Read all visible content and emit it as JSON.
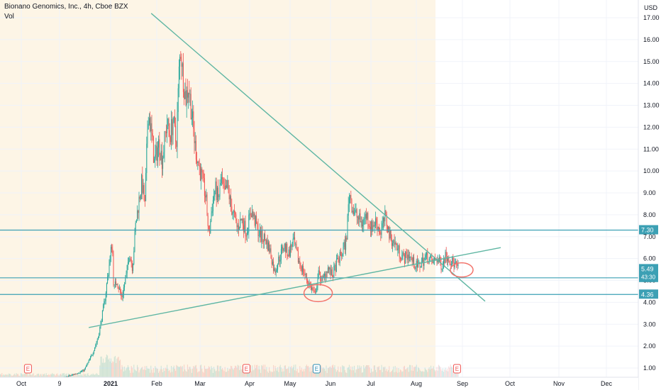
{
  "header": {
    "title": "Bionano Genomics, Inc., 4h, Cboe BZX",
    "volume_label": "Vol"
  },
  "currency_label": "USD",
  "chart_data": {
    "type": "candlestick",
    "symbol": "Bionano Genomics, Inc.",
    "interval": "4h",
    "exchange": "Cboe BZX",
    "x_axis_labels": [
      "Oct",
      "9",
      "2021",
      "Feb",
      "Mar",
      "Apr",
      "May",
      "Jun",
      "Jul",
      "Aug",
      "Sep",
      "Oct",
      "Nov",
      "Dec"
    ],
    "y_axis_ticks": [
      "17.00",
      "16.00",
      "15.00",
      "14.00",
      "13.00",
      "12.00",
      "11.00",
      "10.00",
      "9.00",
      "8.00",
      "7.00",
      "6.00",
      "5.00",
      "4.00",
      "3.00",
      "2.00",
      "1.00"
    ],
    "ylim": [
      0.75,
      17.45
    ],
    "price_path": [
      [
        "2020-10-01",
        0.42
      ],
      [
        "2020-11-01",
        0.45
      ],
      [
        "2020-12-01",
        0.5
      ],
      [
        "2020-12-15",
        0.9
      ],
      [
        "2020-12-20",
        1.6
      ],
      [
        "2020-12-24",
        2.4
      ],
      [
        "2020-12-28",
        4.0
      ],
      [
        "2021-01-02",
        6.8
      ],
      [
        "2021-01-03",
        4.6
      ],
      [
        "2021-01-05",
        5.0
      ],
      [
        "2021-01-08",
        4.2
      ],
      [
        "2021-01-11",
        5.2
      ],
      [
        "2021-01-13",
        6.3
      ],
      [
        "2021-01-15",
        5.6
      ],
      [
        "2021-01-17",
        7.5
      ],
      [
        "2021-01-19",
        8.6
      ],
      [
        "2021-01-21",
        9.5
      ],
      [
        "2021-01-23",
        8.4
      ],
      [
        "2021-01-25",
        12.8
      ],
      [
        "2021-01-27",
        11.8
      ],
      [
        "2021-01-29",
        10.4
      ],
      [
        "2021-02-01",
        11.3
      ],
      [
        "2021-02-03",
        10.5
      ],
      [
        "2021-02-06",
        12.2
      ],
      [
        "2021-02-08",
        11.6
      ],
      [
        "2021-02-10",
        12.3
      ],
      [
        "2021-02-12",
        11.2
      ],
      [
        "2021-02-14",
        14.8
      ],
      [
        "2021-02-15",
        15.6
      ],
      [
        "2021-02-16",
        14.6
      ],
      [
        "2021-02-18",
        13.3
      ],
      [
        "2021-02-20",
        13.9
      ],
      [
        "2021-02-22",
        12.6
      ],
      [
        "2021-02-24",
        11.2
      ],
      [
        "2021-02-26",
        10.4
      ],
      [
        "2021-03-01",
        9.5
      ],
      [
        "2021-03-03",
        8.8
      ],
      [
        "2021-03-05",
        7.0
      ],
      [
        "2021-03-07",
        8.4
      ],
      [
        "2021-03-09",
        9.2
      ],
      [
        "2021-03-11",
        8.7
      ],
      [
        "2021-03-13",
        9.6
      ],
      [
        "2021-03-15",
        8.9
      ],
      [
        "2021-03-17",
        9.3
      ],
      [
        "2021-03-19",
        8.4
      ],
      [
        "2021-03-21",
        8.0
      ],
      [
        "2021-03-23",
        7.4
      ],
      [
        "2021-03-26",
        7.8
      ],
      [
        "2021-03-29",
        7.2
      ],
      [
        "2021-04-01",
        8.2
      ],
      [
        "2021-04-04",
        7.6
      ],
      [
        "2021-04-07",
        7.0
      ],
      [
        "2021-04-10",
        6.9
      ],
      [
        "2021-04-13",
        6.4
      ],
      [
        "2021-04-16",
        5.4
      ],
      [
        "2021-04-19",
        6.0
      ],
      [
        "2021-04-22",
        6.6
      ],
      [
        "2021-04-25",
        6.2
      ],
      [
        "2021-04-28",
        6.8
      ],
      [
        "2021-05-01",
        6.0
      ],
      [
        "2021-05-04",
        5.5
      ],
      [
        "2021-05-07",
        5.0
      ],
      [
        "2021-05-10",
        4.6
      ],
      [
        "2021-05-12",
        4.3
      ],
      [
        "2021-05-14",
        5.3
      ],
      [
        "2021-05-17",
        5.0
      ],
      [
        "2021-05-20",
        5.6
      ],
      [
        "2021-05-23",
        5.2
      ],
      [
        "2021-05-26",
        5.8
      ],
      [
        "2021-05-29",
        6.2
      ],
      [
        "2021-06-01",
        6.8
      ],
      [
        "2021-06-03",
        9.1
      ],
      [
        "2021-06-05",
        8.3
      ],
      [
        "2021-06-08",
        7.9
      ],
      [
        "2021-06-11",
        7.6
      ],
      [
        "2021-06-14",
        8.0
      ],
      [
        "2021-06-17",
        7.4
      ],
      [
        "2021-06-20",
        7.7
      ],
      [
        "2021-06-23",
        7.2
      ],
      [
        "2021-06-26",
        7.9
      ],
      [
        "2021-06-29",
        7.0
      ],
      [
        "2021-07-02",
        6.7
      ],
      [
        "2021-07-05",
        6.3
      ],
      [
        "2021-07-08",
        6.0
      ],
      [
        "2021-07-11",
        6.2
      ],
      [
        "2021-07-14",
        5.8
      ],
      [
        "2021-07-17",
        5.6
      ],
      [
        "2021-07-20",
        5.9
      ],
      [
        "2021-07-23",
        6.1
      ],
      [
        "2021-07-26",
        5.8
      ],
      [
        "2021-07-29",
        6.0
      ],
      [
        "2021-08-01",
        5.7
      ],
      [
        "2021-08-04",
        6.2
      ],
      [
        "2021-08-07",
        5.9
      ],
      [
        "2021-08-10",
        5.7
      ],
      [
        "2021-08-12",
        5.5
      ]
    ],
    "horizontal_levels": [
      {
        "price": 7.3,
        "label": "7.30"
      },
      {
        "price": 5.12,
        "label": "5.12"
      },
      {
        "price": 4.36,
        "label": "4.36"
      }
    ],
    "current_price": {
      "label": "5.49",
      "countdown": "43:30"
    },
    "event_markers": [
      {
        "date": "2020-11-09",
        "label": "E"
      },
      {
        "date": "2021-03-29",
        "label": "E"
      },
      {
        "date": "2021-05-13",
        "label": "E"
      },
      {
        "date": "2021-08-11",
        "label": "E"
      }
    ],
    "trendlines": [
      {
        "name": "descending",
        "color": "#5fb6a3",
        "from": [
          "2021-01-27",
          17.2
        ],
        "to": [
          "2021-08-29",
          4.05
        ]
      },
      {
        "name": "ascending",
        "color": "#5fb6a3",
        "from": [
          "2020-12-18",
          2.85
        ],
        "to": [
          "2021-09-08",
          6.5
        ]
      }
    ],
    "colors": {
      "up_candle": "#26a69a",
      "down_candle": "#ef5350",
      "level_line": "#3ca0b4",
      "trendline": "#5fb6a3",
      "annotation_circle": "#f2736b",
      "session_shading": "#fdf5e6",
      "axis_text": "#131722",
      "grid": "#f0f3fa"
    },
    "grid": true,
    "legend": "none"
  }
}
